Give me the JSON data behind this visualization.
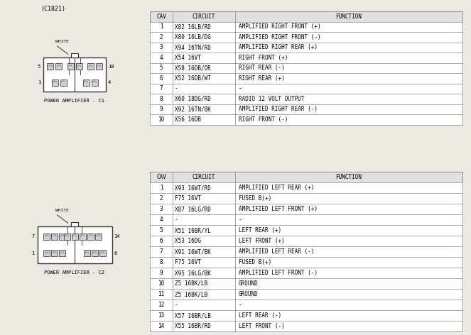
{
  "title_top": "(C1821)",
  "bg_color": "#ece9e2",
  "table1": {
    "header": [
      "CAV",
      "CIRCUIT",
      "FUNCTION"
    ],
    "rows": [
      [
        "1",
        "X82 16LB/RD",
        "AMPLIFIED RIGHT FRONT (+)"
      ],
      [
        "2",
        "X80 16LB/DG",
        "AMPLIFIED RIGHT FRONT (-)"
      ],
      [
        "3",
        "X94 16TN/RD",
        "AMPLIFIED RIGHT REAR (+)"
      ],
      [
        "4",
        "X54 16VT",
        "RIGHT FRONT (+)"
      ],
      [
        "5",
        "X58 16DB/OR",
        "RIGHT REAR (-)"
      ],
      [
        "6",
        "X52 16DB/WT",
        "RIGHT REAR (+)"
      ],
      [
        "7",
        "-",
        "-"
      ],
      [
        "8",
        "X60 18DG/RD",
        "RADIO 12 VOLT OUTPUT"
      ],
      [
        "9",
        "X92 16TN/BK",
        "AMPLIFIED RIGHT REAR (-)"
      ],
      [
        "10",
        "X56 16DB",
        "RIGHT FRONT (-)"
      ]
    ]
  },
  "table2": {
    "header": [
      "CAV",
      "CIRCUIT",
      "FUNCTION"
    ],
    "rows": [
      [
        "1",
        "X93 16WT/RD",
        "AMPLIFIED LEFT REAR (+)"
      ],
      [
        "2",
        "F75 16VT",
        "FUSED B(+)"
      ],
      [
        "3",
        "X87 16LG/RD",
        "AMPLIFIED LEFT FRONT (+)"
      ],
      [
        "4",
        "-",
        "-"
      ],
      [
        "5",
        "X51 16BR/YL",
        "LEFT REAR (+)"
      ],
      [
        "6",
        "X53 16DG",
        "LEFT FRONT (+)"
      ],
      [
        "7",
        "X91 16WT/BK",
        "AMPLIFIED LEFT REAR (-)"
      ],
      [
        "8",
        "F75 16VT",
        "FUSED B(+)"
      ],
      [
        "9",
        "X95 16LG/BK",
        "AMPLIFIED LEFT FRONT (-)"
      ],
      [
        "10",
        "Z5 16BK/LB",
        "GROUND"
      ],
      [
        "11",
        "Z5 16BK/LB",
        "GROUND"
      ],
      [
        "12",
        "-",
        "-"
      ],
      [
        "13",
        "X57 16BR/LB",
        "LEFT REAR (-)"
      ],
      [
        "14",
        "X55 16BR/RD",
        "LEFT FRONT (-)"
      ]
    ]
  },
  "font_size": 5.5,
  "line_color": "#888888"
}
